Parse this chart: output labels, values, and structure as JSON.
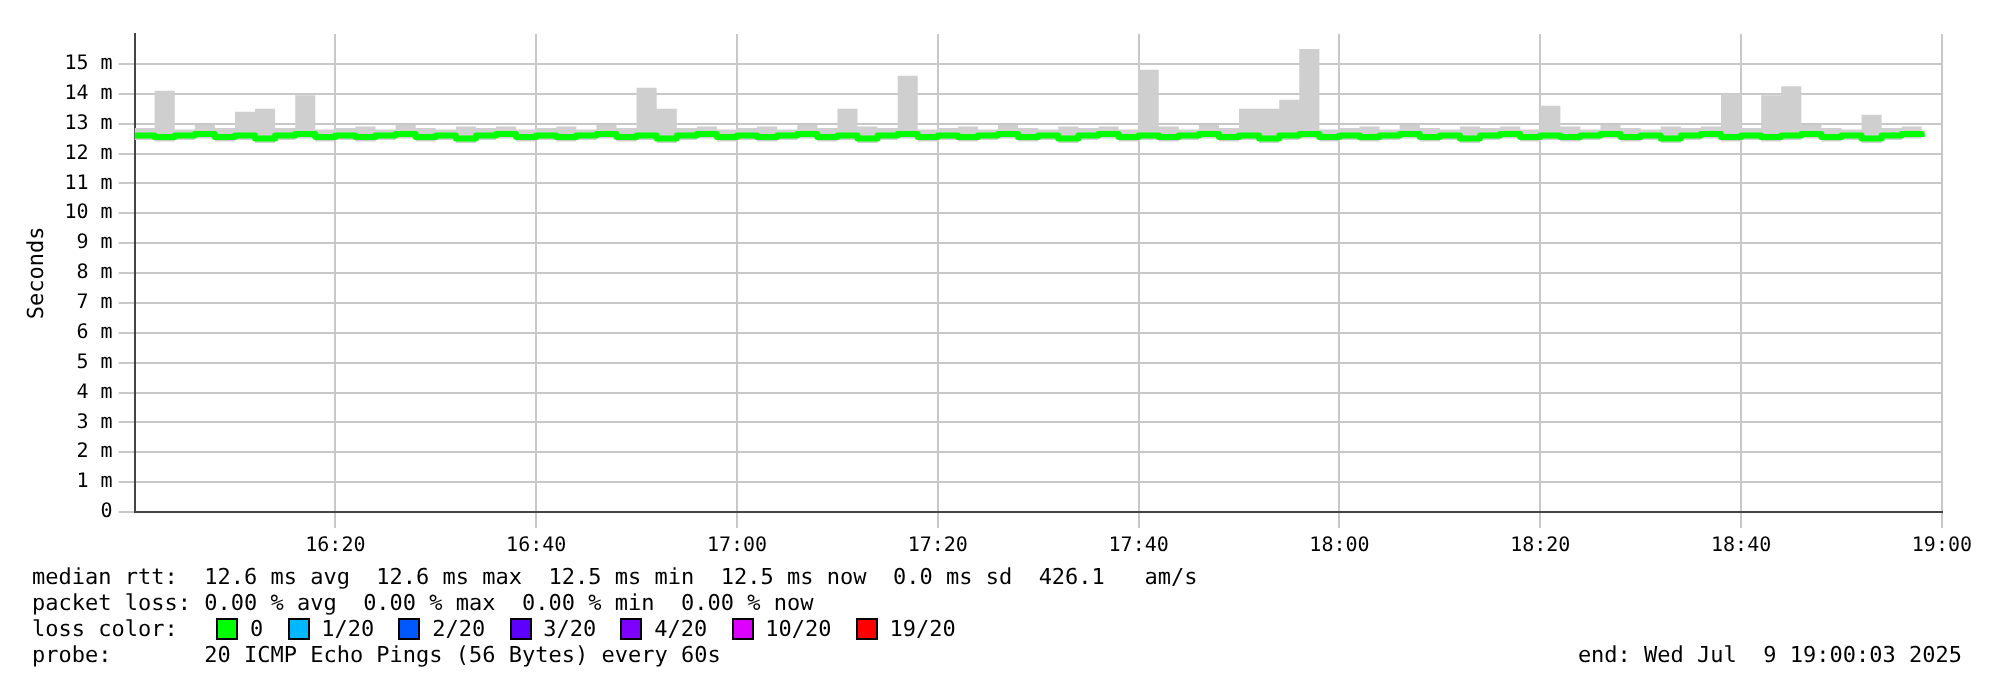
{
  "chart_data": {
    "type": "step",
    "ylabel": "Seconds",
    "xlim": [
      16,
      19
    ],
    "xticks": [
      {
        "value": 16.3333,
        "label": "16:20"
      },
      {
        "value": 16.6667,
        "label": "16:40"
      },
      {
        "value": 17,
        "label": "17:00"
      },
      {
        "value": 17.3333,
        "label": "17:20"
      },
      {
        "value": 17.6667,
        "label": "17:40"
      },
      {
        "value": 18,
        "label": "18:00"
      },
      {
        "value": 18.3333,
        "label": "18:20"
      },
      {
        "value": 18.6667,
        "label": "18:40"
      },
      {
        "value": 19,
        "label": "19:00"
      }
    ],
    "ylim": [
      0,
      16
    ],
    "yticks": [
      {
        "value": 0,
        "label": "0"
      },
      {
        "value": 1,
        "label": "1 m"
      },
      {
        "value": 2,
        "label": "2 m"
      },
      {
        "value": 3,
        "label": "3 m"
      },
      {
        "value": 4,
        "label": "4 m"
      },
      {
        "value": 5,
        "label": "5 m"
      },
      {
        "value": 6,
        "label": "6 m"
      },
      {
        "value": 7,
        "label": "7 m"
      },
      {
        "value": 8,
        "label": "8 m"
      },
      {
        "value": 9,
        "label": "9 m"
      },
      {
        "value": 10,
        "label": "10 m"
      },
      {
        "value": 11,
        "label": "11 m"
      },
      {
        "value": 12,
        "label": "12 m"
      },
      {
        "value": 13,
        "label": "13 m"
      },
      {
        "value": 14,
        "label": "14 m"
      },
      {
        "value": 15,
        "label": "15 m"
      }
    ],
    "grid": true,
    "legend": "bottom",
    "legend_title": "loss color:",
    "x": [
      16,
      16.0333,
      16.0667,
      16.1,
      16.1333,
      16.1667,
      16.2,
      16.2333,
      16.2667,
      16.3,
      16.3333,
      16.3667,
      16.4,
      16.4333,
      16.4667,
      16.5,
      16.5333,
      16.5667,
      16.6,
      16.6333,
      16.6667,
      16.7,
      16.7333,
      16.7667,
      16.8,
      16.8333,
      16.8667,
      16.9,
      16.9333,
      16.9667,
      17,
      17.0333,
      17.0667,
      17.1,
      17.1333,
      17.1667,
      17.2,
      17.2333,
      17.2667,
      17.3,
      17.3333,
      17.3667,
      17.4,
      17.4333,
      17.4667,
      17.5,
      17.5333,
      17.5667,
      17.6,
      17.6333,
      17.6667,
      17.7,
      17.7333,
      17.7667,
      17.8,
      17.8333,
      17.8667,
      17.9,
      17.9333,
      17.9667,
      18,
      18.0333,
      18.0667,
      18.1,
      18.1333,
      18.1667,
      18.2,
      18.2333,
      18.2667,
      18.3,
      18.3333,
      18.3667,
      18.4,
      18.4333,
      18.4667,
      18.5,
      18.5333,
      18.5667,
      18.6,
      18.6333,
      18.6667,
      18.7,
      18.7333,
      18.7667,
      18.8,
      18.8333,
      18.8667,
      18.9,
      18.9333,
      18.9667
    ],
    "series": [
      {
        "name": "0",
        "color": "#00ff00",
        "values": [
          12.6,
          12.55,
          12.6,
          12.65,
          12.55,
          12.6,
          12.5,
          12.6,
          12.65,
          12.55,
          12.6,
          12.55,
          12.6,
          12.65,
          12.55,
          12.6,
          12.5,
          12.6,
          12.65,
          12.55,
          12.6,
          12.55,
          12.6,
          12.65,
          12.55,
          12.6,
          12.5,
          12.6,
          12.65,
          12.55,
          12.6,
          12.55,
          12.6,
          12.65,
          12.55,
          12.6,
          12.5,
          12.6,
          12.65,
          12.55,
          12.6,
          12.55,
          12.6,
          12.65,
          12.55,
          12.6,
          12.5,
          12.6,
          12.65,
          12.55,
          12.6,
          12.55,
          12.6,
          12.65,
          12.55,
          12.6,
          12.5,
          12.6,
          12.65,
          12.55,
          12.6,
          12.55,
          12.6,
          12.65,
          12.55,
          12.6,
          12.5,
          12.6,
          12.65,
          12.55,
          12.6,
          12.55,
          12.6,
          12.65,
          12.55,
          12.6,
          12.5,
          12.6,
          12.65,
          12.55,
          12.6,
          12.55,
          12.6,
          12.65,
          12.55,
          12.6,
          12.5,
          12.6,
          12.65,
          12.55
        ],
        "lower": [
          12.45,
          12.4,
          12.45,
          12.5,
          12.4,
          12.45,
          12.35,
          12.45,
          12.5,
          12.4,
          12.45,
          12.4,
          12.45,
          12.5,
          12.4,
          12.45,
          12.35,
          12.45,
          12.5,
          12.4,
          12.45,
          12.4,
          12.45,
          12.5,
          12.4,
          12.45,
          12.35,
          12.45,
          12.5,
          12.4,
          12.45,
          12.4,
          12.45,
          12.5,
          12.4,
          12.45,
          12.35,
          12.45,
          12.5,
          12.4,
          12.45,
          12.4,
          12.45,
          12.5,
          12.4,
          12.45,
          12.35,
          12.45,
          12.5,
          12.4,
          12.45,
          12.4,
          12.45,
          12.5,
          12.4,
          12.45,
          12.35,
          12.45,
          12.5,
          12.4,
          12.45,
          12.4,
          12.45,
          12.5,
          12.4,
          12.45,
          12.35,
          12.45,
          12.5,
          12.4,
          12.45,
          12.4,
          12.45,
          12.5,
          12.4,
          12.45,
          12.35,
          12.45,
          12.5,
          12.4,
          12.45,
          12.4,
          12.45,
          12.5,
          12.4,
          12.45,
          12.35,
          12.45,
          12.5,
          12.4
        ],
        "upper": [
          12.85,
          14.1,
          12.8,
          12.95,
          12.85,
          13.4,
          13.5,
          12.85,
          13.95,
          12.8,
          12.85,
          12.9,
          12.8,
          12.95,
          12.85,
          12.8,
          12.9,
          12.85,
          12.9,
          12.8,
          12.85,
          12.9,
          12.8,
          12.95,
          12.85,
          14.2,
          13.5,
          12.85,
          12.9,
          12.8,
          12.85,
          12.9,
          12.8,
          12.95,
          12.85,
          13.5,
          12.9,
          12.85,
          14.6,
          12.8,
          12.85,
          12.9,
          12.8,
          12.95,
          12.85,
          12.8,
          12.9,
          12.85,
          12.9,
          12.8,
          14.8,
          12.9,
          12.8,
          12.95,
          12.85,
          13.5,
          13.5,
          13.8,
          15.5,
          12.8,
          12.85,
          12.9,
          12.8,
          12.95,
          12.85,
          12.8,
          12.9,
          12.85,
          12.9,
          12.8,
          13.6,
          12.9,
          12.8,
          12.95,
          12.85,
          12.8,
          12.9,
          12.85,
          12.9,
          14.0,
          12.85,
          13.95,
          14.25,
          12.95,
          12.85,
          12.8,
          13.3,
          12.85,
          12.9,
          12.8
        ]
      },
      {
        "name": "1/20",
        "color": "#00b8ff",
        "values": [
          null,
          null,
          null,
          null,
          null,
          null,
          null,
          null,
          null,
          null,
          null,
          null,
          null,
          null,
          null,
          null,
          null,
          null,
          null,
          null,
          null,
          null,
          null,
          null,
          null,
          null,
          null,
          null,
          null,
          null,
          null,
          null,
          null,
          null,
          null,
          null,
          null,
          null,
          null,
          null,
          null,
          null,
          null,
          null,
          null,
          null,
          null,
          null,
          null,
          null,
          null,
          null,
          null,
          null,
          null,
          null,
          null,
          null,
          null,
          null,
          null,
          null,
          null,
          null,
          null,
          null,
          null,
          null,
          null,
          null,
          null,
          null,
          null,
          null,
          null,
          null,
          null,
          null,
          null,
          null,
          null,
          null,
          null,
          null,
          null,
          null,
          null,
          null,
          null,
          null
        ]
      },
      {
        "name": "2/20",
        "color": "#0059ff",
        "values": [
          null,
          null,
          null,
          null,
          null,
          null,
          null,
          null,
          null,
          null,
          null,
          null,
          null,
          null,
          null,
          null,
          null,
          null,
          null,
          null,
          null,
          null,
          null,
          null,
          null,
          null,
          null,
          null,
          null,
          null,
          null,
          null,
          null,
          null,
          null,
          null,
          null,
          null,
          null,
          null,
          null,
          null,
          null,
          null,
          null,
          null,
          null,
          null,
          null,
          null,
          null,
          null,
          null,
          null,
          null,
          null,
          null,
          null,
          null,
          null,
          null,
          null,
          null,
          null,
          null,
          null,
          null,
          null,
          null,
          null,
          null,
          null,
          null,
          null,
          null,
          null,
          null,
          null,
          null,
          null,
          null,
          null,
          null,
          null,
          null,
          null,
          null,
          null,
          null,
          null
        ]
      },
      {
        "name": "3/20",
        "color": "#5e00ff",
        "values": [
          null,
          null,
          null,
          null,
          null,
          null,
          null,
          null,
          null,
          null,
          null,
          null,
          null,
          null,
          null,
          null,
          null,
          null,
          null,
          null,
          null,
          null,
          null,
          null,
          null,
          null,
          null,
          null,
          null,
          null,
          null,
          null,
          null,
          null,
          null,
          null,
          null,
          null,
          null,
          null,
          null,
          null,
          null,
          null,
          null,
          null,
          null,
          null,
          null,
          null,
          null,
          null,
          null,
          null,
          null,
          null,
          null,
          null,
          null,
          null,
          null,
          null,
          null,
          null,
          null,
          null,
          null,
          null,
          null,
          null,
          null,
          null,
          null,
          null,
          null,
          null,
          null,
          null,
          null,
          null,
          null,
          null,
          null,
          null,
          null,
          null,
          null,
          null,
          null,
          null
        ]
      },
      {
        "name": "4/20",
        "color": "#7e00ff",
        "values": [
          null,
          null,
          null,
          null,
          null,
          null,
          null,
          null,
          null,
          null,
          null,
          null,
          null,
          null,
          null,
          null,
          null,
          null,
          null,
          null,
          null,
          null,
          null,
          null,
          null,
          null,
          null,
          null,
          null,
          null,
          null,
          null,
          null,
          null,
          null,
          null,
          null,
          null,
          null,
          null,
          null,
          null,
          null,
          null,
          null,
          null,
          null,
          null,
          null,
          null,
          null,
          null,
          null,
          null,
          null,
          null,
          null,
          null,
          null,
          null,
          null,
          null,
          null,
          null,
          null,
          null,
          null,
          null,
          null,
          null,
          null,
          null,
          null,
          null,
          null,
          null,
          null,
          null,
          null,
          null,
          null,
          null,
          null,
          null,
          null,
          null,
          null,
          null,
          null,
          null
        ]
      },
      {
        "name": "10/20",
        "color": "#dd00ff",
        "values": [
          null,
          null,
          null,
          null,
          null,
          null,
          null,
          null,
          null,
          null,
          null,
          null,
          null,
          null,
          null,
          null,
          null,
          null,
          null,
          null,
          null,
          null,
          null,
          null,
          null,
          null,
          null,
          null,
          null,
          null,
          null,
          null,
          null,
          null,
          null,
          null,
          null,
          null,
          null,
          null,
          null,
          null,
          null,
          null,
          null,
          null,
          null,
          null,
          null,
          null,
          null,
          null,
          null,
          null,
          null,
          null,
          null,
          null,
          null,
          null,
          null,
          null,
          null,
          null,
          null,
          null,
          null,
          null,
          null,
          null,
          null,
          null,
          null,
          null,
          null,
          null,
          null,
          null,
          null,
          null,
          null,
          null,
          null,
          null,
          null,
          null,
          null,
          null,
          null,
          null
        ]
      },
      {
        "name": "19/20",
        "color": "#ff0000",
        "values": [
          null,
          null,
          null,
          null,
          null,
          null,
          null,
          null,
          null,
          null,
          null,
          null,
          null,
          null,
          null,
          null,
          null,
          null,
          null,
          null,
          null,
          null,
          null,
          null,
          null,
          null,
          null,
          null,
          null,
          null,
          null,
          null,
          null,
          null,
          null,
          null,
          null,
          null,
          null,
          null,
          null,
          null,
          null,
          null,
          null,
          null,
          null,
          null,
          null,
          null,
          null,
          null,
          null,
          null,
          null,
          null,
          null,
          null,
          null,
          null,
          null,
          null,
          null,
          null,
          null,
          null,
          null,
          null,
          null,
          null,
          null,
          null,
          null,
          null,
          null,
          null,
          null,
          null,
          null,
          null,
          null,
          null,
          null,
          null,
          null,
          null,
          null,
          null,
          null,
          null
        ]
      }
    ],
    "annotations": [
      "median rtt:  12.6 ms avg  12.6 ms max  12.5 ms min  12.5 ms now  0.0 ms sd  426.1   am/s",
      "packet loss: 0.00 % avg  0.00 % max  0.00 % min  0.00 % now",
      "probe:       20 ICMP Echo Pings (56 Bytes) every 60s",
      "end: Wed Jul  9 19:00:03 2025"
    ]
  }
}
